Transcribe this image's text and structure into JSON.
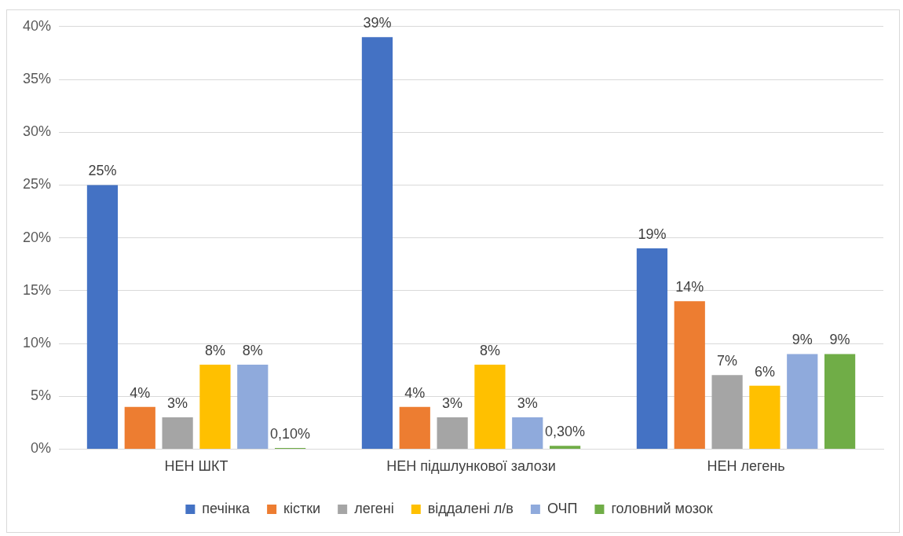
{
  "chart_data": {
    "type": "bar",
    "categories": [
      "НЕН ШКТ",
      "НЕН підшлункової залози",
      "НЕН легень"
    ],
    "series": [
      {
        "name": "печінка",
        "color": "#4472c4",
        "values": [
          25,
          39,
          19
        ],
        "value_labels": [
          "25%",
          "39%",
          "19%"
        ]
      },
      {
        "name": "кістки",
        "color": "#ed7d31",
        "values": [
          4,
          4,
          14
        ],
        "value_labels": [
          "4%",
          "4%",
          "14%"
        ]
      },
      {
        "name": "легені",
        "color": "#a5a5a5",
        "values": [
          3,
          3,
          7
        ],
        "value_labels": [
          "3%",
          "3%",
          "7%"
        ]
      },
      {
        "name": "віддалені л/в",
        "color": "#ffc000",
        "values": [
          8,
          8,
          6
        ],
        "value_labels": [
          "8%",
          "8%",
          "6%"
        ]
      },
      {
        "name": "ОЧП",
        "color": "#8faadc",
        "values": [
          8,
          3,
          9
        ],
        "value_labels": [
          "8%",
          "3%",
          "9%"
        ]
      },
      {
        "name": "головний мозок",
        "color": "#70ad47",
        "values": [
          0.1,
          0.3,
          9
        ],
        "value_labels": [
          "0,10%",
          "0,30%",
          "9%"
        ]
      }
    ],
    "ylim": [
      0,
      40
    ],
    "yticks": [
      {
        "value": 0,
        "label": "0%"
      },
      {
        "value": 5,
        "label": "5%"
      },
      {
        "value": 10,
        "label": "10%"
      },
      {
        "value": 15,
        "label": "15%"
      },
      {
        "value": 20,
        "label": "20%"
      },
      {
        "value": 25,
        "label": "25%"
      },
      {
        "value": 30,
        "label": "30%"
      },
      {
        "value": 35,
        "label": "35%"
      },
      {
        "value": 40,
        "label": "40%"
      }
    ],
    "grid": "y",
    "legend": "bottom"
  }
}
